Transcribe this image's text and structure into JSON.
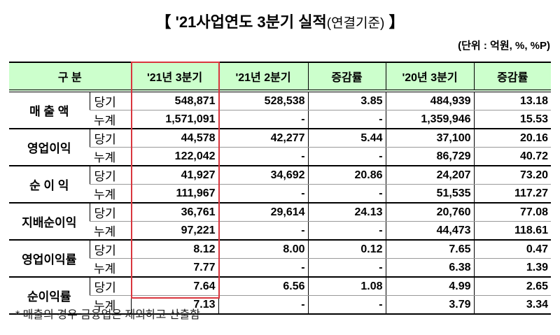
{
  "title": {
    "main": "【 '21사업연도 3분기 실적",
    "sub": "(연결기준)",
    "close": " 】"
  },
  "unit": "(단위 : 억원, %, %P)",
  "headers": [
    "구    분",
    "'21년 3분기",
    "'21년 2분기",
    "증감률",
    "'20년 3분기",
    "증감률"
  ],
  "groups": [
    {
      "label": "매 출 액",
      "rows": [
        {
          "type": "당기",
          "values": [
            "548,871",
            "528,538",
            "3.85",
            "484,939",
            "13.18"
          ]
        },
        {
          "type": "누계",
          "values": [
            "1,571,091",
            "-",
            "-",
            "1,359,946",
            "15.53"
          ]
        }
      ]
    },
    {
      "label": "영업이익",
      "rows": [
        {
          "type": "당기",
          "values": [
            "44,578",
            "42,277",
            "5.44",
            "37,100",
            "20.16"
          ]
        },
        {
          "type": "누계",
          "values": [
            "122,042",
            "-",
            "-",
            "86,729",
            "40.72"
          ]
        }
      ]
    },
    {
      "label": "순 이 익",
      "rows": [
        {
          "type": "당기",
          "values": [
            "41,927",
            "34,692",
            "20.86",
            "24,207",
            "73.20"
          ]
        },
        {
          "type": "누계",
          "values": [
            "111,967",
            "-",
            "-",
            "51,535",
            "117.27"
          ]
        }
      ]
    },
    {
      "label": "지배순이익",
      "rows": [
        {
          "type": "당기",
          "values": [
            "36,761",
            "29,614",
            "24.13",
            "20,760",
            "77.08"
          ]
        },
        {
          "type": "누계",
          "values": [
            "97,221",
            "-",
            "-",
            "44,473",
            "118.61"
          ]
        }
      ]
    },
    {
      "label": "영업이익률",
      "rows": [
        {
          "type": "당기",
          "values": [
            "8.12",
            "8.00",
            "0.12",
            "7.65",
            "0.47"
          ]
        },
        {
          "type": "누계",
          "values": [
            "7.77",
            "-",
            "-",
            "6.38",
            "1.39"
          ]
        }
      ]
    },
    {
      "label": "순이익률",
      "rows": [
        {
          "type": "당기",
          "values": [
            "7.64",
            "6.56",
            "1.08",
            "4.99",
            "2.65"
          ]
        },
        {
          "type": "누계",
          "values": [
            "7.13",
            "-",
            "-",
            "3.79",
            "3.34"
          ]
        }
      ]
    }
  ],
  "note": "* 매출의 경우 금융업은 제외하고 산출함",
  "colors": {
    "header_bg": "#ccffcc",
    "highlight": "#d9363e"
  }
}
